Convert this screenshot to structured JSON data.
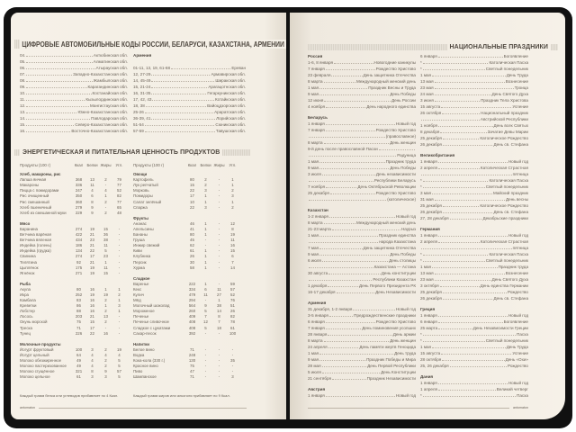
{
  "car_codes": {
    "title": "ЦИФРОВЫЕ АВТОМОБИЛЬНЫЕ КОДЫ РОССИИ, БЕЛАРУСИ, КАЗАХСТАНА, АРМЕНИИ",
    "kazakhstan": [
      [
        "04.",
        "Актюбинская обл."
      ],
      [
        "05.",
        "Алматинская обл."
      ],
      [
        "06.",
        "Атырауская обл."
      ],
      [
        "07.",
        "Западно-Казахстанская обл."
      ],
      [
        "08.",
        "Жамбылская обл."
      ],
      [
        "09.",
        "Карагандинская обл."
      ],
      [
        "10.",
        "Костанайская обл."
      ],
      [
        "11.",
        "Кызылординская обл."
      ],
      [
        "12.",
        "Мангистауская обл."
      ],
      [
        "13.",
        "Южно-Казахстанская обл."
      ],
      [
        "14.",
        "Павлодарская обл."
      ],
      [
        "15.",
        "Северо-Казахстанская обл."
      ],
      [
        "16.",
        "Восточно-Казахстанская обл."
      ]
    ],
    "armenia_label": "Армения",
    "armenia": [
      [
        "01-11, 13, 19, 61-68",
        "Ереван"
      ],
      [
        "12, 27-29",
        "Армавирская обл."
      ],
      [
        "14, 45-49",
        "Ширакская обл."
      ],
      [
        "15, 21-24",
        "Арагацотнская обл."
      ],
      [
        "16, 31-35",
        "Гегаркуникская обл."
      ],
      [
        "17, 42, 43",
        "Котайкская обл."
      ],
      [
        "18, 38",
        "Вайоцдзорская обл."
      ],
      [
        "25-26",
        "Араратская обл."
      ],
      [
        "36-39, 41",
        "Лорийская обл."
      ],
      [
        "51-54",
        "Сюникская обл."
      ],
      [
        "57-59",
        "Тавушская обл."
      ]
    ]
  },
  "nutrition": {
    "title": "ЭНЕРГЕТИЧЕСКАЯ И ПИТАТЕЛЬНАЯ ЦЕННОСТЬ ПРОДУКТОВ",
    "columns": [
      "Продукты (100 г)",
      "Ккал",
      "Белки",
      "Жиры",
      "Угл."
    ],
    "left": [
      {
        "group": "Хлеб, макароны, рис",
        "rows": [
          [
            "Лапша яичная",
            "368",
            "13",
            "2",
            "79"
          ],
          [
            "Макароны",
            "336",
            "11",
            "-",
            "77"
          ],
          [
            "Пицца с помидорами",
            "247",
            "4",
            "4",
            "52"
          ],
          [
            "Рис очищенный",
            "350",
            "6",
            "1",
            "82"
          ],
          [
            "Рис смешанный",
            "360",
            "8",
            "2",
            "77"
          ],
          [
            "Хлеб пшеничный",
            "279",
            "9",
            "-",
            "65"
          ],
          [
            "Хлеб из смешанной муки",
            "229",
            "9",
            "2",
            "48"
          ]
        ]
      },
      {
        "group": "Мясо",
        "rows": [
          [
            "Баранина",
            "274",
            "19",
            "15",
            "-"
          ],
          [
            "Ветчина варёная",
            "422",
            "21",
            "36",
            "-"
          ],
          [
            "Ветчина вяленая",
            "434",
            "23",
            "38",
            "-"
          ],
          [
            "Индейка (голень)",
            "186",
            "21",
            "11",
            "-"
          ],
          [
            "Индейка (грудка)",
            "134",
            "22",
            "5",
            "-"
          ],
          [
            "Свинина",
            "274",
            "17",
            "23",
            "-"
          ],
          [
            "Телятина",
            "92",
            "21",
            "1",
            "-"
          ],
          [
            "Цыплёнок",
            "175",
            "19",
            "11",
            "-"
          ],
          [
            "Ягнёнок",
            "271",
            "19",
            "15",
            "-"
          ]
        ]
      },
      {
        "group": "Рыба",
        "rows": [
          [
            "Акула",
            "80",
            "16",
            "1",
            "1"
          ],
          [
            "Икра",
            "252",
            "19",
            "19",
            "2"
          ],
          [
            "Камбала",
            "83",
            "16",
            "2",
            "1"
          ],
          [
            "Креветки",
            "86",
            "16",
            "1",
            "3"
          ],
          [
            "Лобстер",
            "88",
            "16",
            "2",
            "1"
          ],
          [
            "Лосось",
            "203",
            "21",
            "13",
            "-"
          ],
          [
            "Окунь морской",
            "75",
            "15",
            "2",
            "-"
          ],
          [
            "Треска",
            "71",
            "17",
            "-",
            "-"
          ],
          [
            "Тунец",
            "226",
            "22",
            "16",
            "-"
          ]
        ]
      },
      {
        "group": "Молочные продукты",
        "rows": [
          [
            "Йогурт фруктовый",
            "100",
            "3",
            "2",
            "19"
          ],
          [
            "Йогурт цельный",
            "64",
            "4",
            "4",
            "4"
          ],
          [
            "Молоко обезжиренное",
            "49",
            "4",
            "2",
            "5"
          ],
          [
            "Молоко пастеризованное",
            "49",
            "4",
            "2",
            "5"
          ],
          [
            "Молоко сгущённое",
            "321",
            "8",
            "9",
            "57"
          ],
          [
            "Молоко цельное",
            "61",
            "3",
            "3",
            "5"
          ]
        ]
      }
    ],
    "right": [
      {
        "group": "Овощи",
        "rows": [
          [
            "Картофель",
            "80",
            "2",
            "-",
            "1"
          ],
          [
            "Лук репчатый",
            "15",
            "2",
            "-",
            "1"
          ],
          [
            "Морковь",
            "22",
            "3",
            "-",
            "2"
          ],
          [
            "Помидоры",
            "17",
            "1",
            "-",
            "3"
          ],
          [
            "Салат зелёный",
            "10",
            "1",
            "-",
            "1"
          ],
          [
            "Спаржа",
            "22",
            "3",
            "-",
            "2"
          ]
        ]
      },
      {
        "group": "Фрукты",
        "rows": [
          [
            "Ананас",
            "46",
            "1",
            "-",
            "12"
          ],
          [
            "Апельсины",
            "41",
            "1",
            "-",
            "8"
          ],
          [
            "Бананы",
            "80",
            "1",
            "-",
            "19"
          ],
          [
            "Груша",
            "45",
            "-",
            "-",
            "11"
          ],
          [
            "Инжир свежий",
            "62",
            "-",
            "-",
            "16"
          ],
          [
            "Киви",
            "61",
            "1",
            "-",
            "15"
          ],
          [
            "Клубника",
            "26",
            "1",
            "-",
            "6"
          ],
          [
            "Персик",
            "30",
            "1",
            "-",
            "7"
          ],
          [
            "Хурма",
            "58",
            "1",
            "-",
            "14"
          ]
        ]
      },
      {
        "group": "Сладкое",
        "rows": [
          [
            "Варенье",
            "222",
            "1",
            "-",
            "59"
          ],
          [
            "Кекс",
            "334",
            "6",
            "11",
            "57"
          ],
          [
            "Кулич",
            "479",
            "11",
            "27",
            "52"
          ],
          [
            "Мёд",
            "294",
            "-",
            "1",
            "76"
          ],
          [
            "Молочный шоколад",
            "564",
            "9",
            "38",
            "51"
          ],
          [
            "Мороженое",
            "260",
            "5",
            "14",
            "26"
          ],
          [
            "Печенье",
            "409",
            "7",
            "8",
            "82"
          ],
          [
            "Печенье сливочное",
            "408",
            "12",
            "7",
            "78"
          ],
          [
            "Сладкое с цукатами",
            "408",
            "5",
            "18",
            "61"
          ],
          [
            "Сахар-песок",
            "392",
            "-",
            "-",
            "100"
          ]
        ]
      },
      {
        "group": "Напитки",
        "rows": [
          [
            "Белое вино",
            "71",
            "-",
            "-",
            "-"
          ],
          [
            "Водка",
            "248",
            "-",
            "-",
            "-"
          ],
          [
            "Кока-кола (330 г.)",
            "130",
            "-",
            "-",
            "35"
          ],
          [
            "Красное вино",
            "75",
            "-",
            "-",
            "-"
          ],
          [
            "Пиво",
            "47",
            "-",
            "-",
            "-"
          ],
          [
            "Шампанское",
            "71",
            "-",
            "-",
            "3"
          ]
        ]
      }
    ],
    "note_left": "Каждый грамм белка или углеводов прибавляет по 4 Ккал.",
    "note_right": "Каждый грамм жиров или алкоголя прибавляет по 9 Ккал."
  },
  "holidays": {
    "title": "НАЦИОНАЛЬНЫЕ ПРАЗДНИКИ",
    "left": [
      {
        "country": "Россия",
        "rows": [
          [
            "1-6, 8 января",
            "Новогодние каникулы"
          ],
          [
            "7 января",
            "Рождество Христово"
          ],
          [
            "23 февраля",
            "День защитника Отечества"
          ],
          [
            "8 марта",
            "Международный женский день"
          ],
          [
            "1 мая",
            "Праздник Весны и Труда"
          ],
          [
            "9 мая",
            "День Победы"
          ],
          [
            "12 июня",
            "День России"
          ],
          [
            "4 ноября",
            "День народного единства"
          ]
        ]
      },
      {
        "country": "Беларусь",
        "rows": [
          [
            "1 января",
            "Новый год"
          ],
          [
            "7 января",
            "Рождество Христово"
          ],
          [
            "",
            "(православное)"
          ],
          [
            "8 марта",
            "День женщин"
          ],
          [
            "9-й день после православной Пасхи",
            ""
          ],
          [
            "",
            "Радуница"
          ],
          [
            "1 мая",
            "Праздник труда"
          ],
          [
            "9 мая",
            "День Победы"
          ],
          [
            "3 июля",
            "День независимости"
          ],
          [
            "",
            "Республики Беларусь"
          ],
          [
            "7 ноября",
            "День Октябрьской Революции"
          ],
          [
            "25 декабря",
            "Рождество Христово"
          ],
          [
            "",
            "(католическое)"
          ]
        ]
      },
      {
        "country": "Казахстан",
        "rows": [
          [
            "1-2 января",
            "Новый год"
          ],
          [
            "8 марта",
            "Международный женский день"
          ],
          [
            "21-23 марта",
            "Наурыз"
          ],
          [
            "1 мая",
            "Праздник единства"
          ],
          [
            "",
            "народа Казахстана"
          ],
          [
            "7 мая",
            "День защитника Отечества"
          ],
          [
            "9 мая",
            "День Победы"
          ],
          [
            "6 июля",
            "День столицы"
          ],
          [
            "",
            "Казахстана — Астана"
          ],
          [
            "30 августа",
            "День конституции"
          ],
          [
            "",
            "Республики Казахстан"
          ],
          [
            "1 декабря",
            "День Первого Президента РК"
          ],
          [
            "16-17 декабря",
            "День Независимости"
          ]
        ]
      },
      {
        "country": "Армения",
        "rows": [
          [
            "31 декабря, 1-2 января",
            "Новый год"
          ],
          [
            "3-5 января",
            "Предрождественские праздники"
          ],
          [
            "6 января",
            "Рождество Христово"
          ],
          [
            "7 января",
            "День поминовения усопших"
          ],
          [
            "28 января",
            "День армии"
          ],
          [
            "8 марта",
            "День женщин"
          ],
          [
            "24 апреля",
            "День памяти жертв Геноцида"
          ],
          [
            "1 мая",
            "День труда"
          ],
          [
            "9 мая",
            "Праздник Победы и Мира"
          ],
          [
            "28 мая",
            "День Первой Республики"
          ],
          [
            "5 июля",
            "День Конституции"
          ],
          [
            "21 сентября",
            "Праздник Независимости"
          ]
        ]
      },
      {
        "country": "Австрия",
        "rows": [
          [
            "1 января",
            "Новый год"
          ]
        ]
      }
    ],
    "right": [
      {
        "country": "",
        "rows": [
          [
            "6 января",
            "Богоявление"
          ],
          [
            "*",
            "Католическая Пасха"
          ],
          [
            "*",
            "Светлый понедельник"
          ],
          [
            "1 мая",
            "День Труда"
          ],
          [
            "13 мая",
            "Вознесение"
          ],
          [
            "23 мая",
            "Троица"
          ],
          [
            "24 мая",
            "День Святого Духа"
          ],
          [
            "3 июня",
            "Праздник Тела Христова"
          ],
          [
            "15 августа",
            "Успение"
          ],
          [
            "26 октября",
            "Национальный праздник"
          ],
          [
            "",
            "Австрийской Республики"
          ],
          [
            "1 ноября",
            "День всех Святых"
          ],
          [
            "8 декабря",
            "Зачатие Девы Марии"
          ],
          [
            "25 декабря",
            "Католическое Рождество"
          ],
          [
            "26 декабря",
            "День св. Стефана"
          ]
        ]
      },
      {
        "country": "Великобритания",
        "rows": [
          [
            "1 января",
            "Новый год"
          ],
          [
            "2 апреля",
            "Католическая Страстная"
          ],
          [
            "",
            "пятница"
          ],
          [
            "*",
            "Католическая Пасха"
          ],
          [
            "*",
            "Светлый понедельник"
          ],
          [
            "3 мая",
            "Майский праздник"
          ],
          [
            "31 мая",
            "День весны"
          ],
          [
            "25 декабря",
            "Католическое Рождество"
          ],
          [
            "26 декабря",
            "День св. Стефана"
          ],
          [
            "27, 28 декабря",
            "Декабрьские праздники"
          ]
        ]
      },
      {
        "country": "Германия",
        "rows": [
          [
            "1 января",
            "Новый год"
          ],
          [
            "2 апреля",
            "Католическая Страстная"
          ],
          [
            "",
            "пятница"
          ],
          [
            "*",
            "Католическая Пасха"
          ],
          [
            "*",
            "Светлый понедельник"
          ],
          [
            "1 мая",
            "Праздник труда"
          ],
          [
            "13 мая",
            "Вознесение"
          ],
          [
            "23 мая",
            "День Святого Духа"
          ],
          [
            "3 октября",
            "День единства Германии"
          ],
          [
            "25 декабря",
            "Рождество"
          ],
          [
            "26 декабря",
            "День св. Стефана"
          ]
        ]
      },
      {
        "country": "Греция",
        "rows": [
          [
            "1 января",
            "Новый год"
          ],
          [
            "6 января",
            "Богоявление"
          ],
          [
            "25 марта",
            "День Независимости Греции"
          ],
          [
            "*",
            "Пасха"
          ],
          [
            "*",
            "Светлый понедельник"
          ],
          [
            "1 мая",
            "День Труда"
          ],
          [
            "15 августа",
            "Успение"
          ],
          [
            "28 октября",
            "День «Охи»"
          ],
          [
            "25, 26 декабря",
            "Рождество"
          ]
        ]
      },
      {
        "country": "Дания",
        "rows": [
          [
            "1 января",
            "Новый год"
          ],
          [
            "1 апреля",
            "Великий четверг"
          ],
          [
            "*",
            "Пасха"
          ]
        ]
      }
    ]
  },
  "footer": {
    "brand": "antomaton"
  }
}
